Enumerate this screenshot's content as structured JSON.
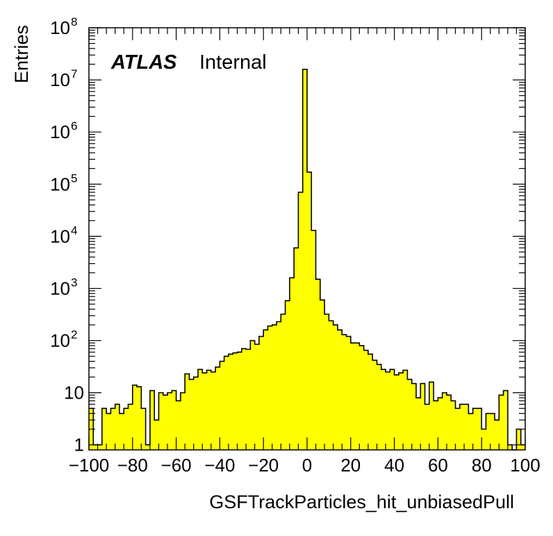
{
  "chart_data": {
    "type": "bar",
    "title": "",
    "xlabel": "GSFTrackParticles_hit_unbiasedPull",
    "ylabel": "Entries",
    "yscale": "log",
    "xlim": [
      -100,
      100
    ],
    "ylim": [
      0.8,
      100000000
    ],
    "xticks": [
      "−100",
      "−80",
      "−60",
      "−40",
      "−20",
      "0",
      "20",
      "40",
      "60",
      "80",
      "100"
    ],
    "yticks": [
      {
        "base": "1",
        "exp": ""
      },
      {
        "base": "10",
        "exp": ""
      },
      {
        "base": "10",
        "exp": "2"
      },
      {
        "base": "10",
        "exp": "3"
      },
      {
        "base": "10",
        "exp": "4"
      },
      {
        "base": "10",
        "exp": "5"
      },
      {
        "base": "10",
        "exp": "6"
      },
      {
        "base": "10",
        "exp": "7"
      },
      {
        "base": "10",
        "exp": "8"
      }
    ],
    "fill_color": "#ffff00",
    "line_color": "#000000",
    "bin_edges_start": -100,
    "bin_width": 2,
    "values": [
      5,
      1,
      1,
      5,
      4,
      5,
      6,
      4,
      5,
      6,
      14,
      13,
      5,
      1,
      11,
      3,
      10,
      9,
      10,
      11,
      7,
      10,
      23,
      18,
      20,
      28,
      24,
      27,
      25,
      31,
      40,
      50,
      55,
      58,
      60,
      70,
      68,
      100,
      85,
      120,
      160,
      190,
      200,
      230,
      320,
      580,
      1600,
      6000,
      70000,
      16000000,
      170000,
      13000,
      1500,
      600,
      320,
      240,
      200,
      160,
      130,
      120,
      90,
      90,
      80,
      65,
      55,
      42,
      35,
      28,
      25,
      28,
      22,
      24,
      27,
      18,
      15,
      8,
      15,
      6,
      16,
      7,
      8,
      10,
      9,
      7,
      5,
      6,
      6,
      4,
      5,
      5,
      2,
      4,
      4,
      3,
      9,
      11,
      1,
      0,
      2,
      1
    ]
  },
  "annotation": {
    "brand": "ATLAS",
    "status": "Internal"
  }
}
